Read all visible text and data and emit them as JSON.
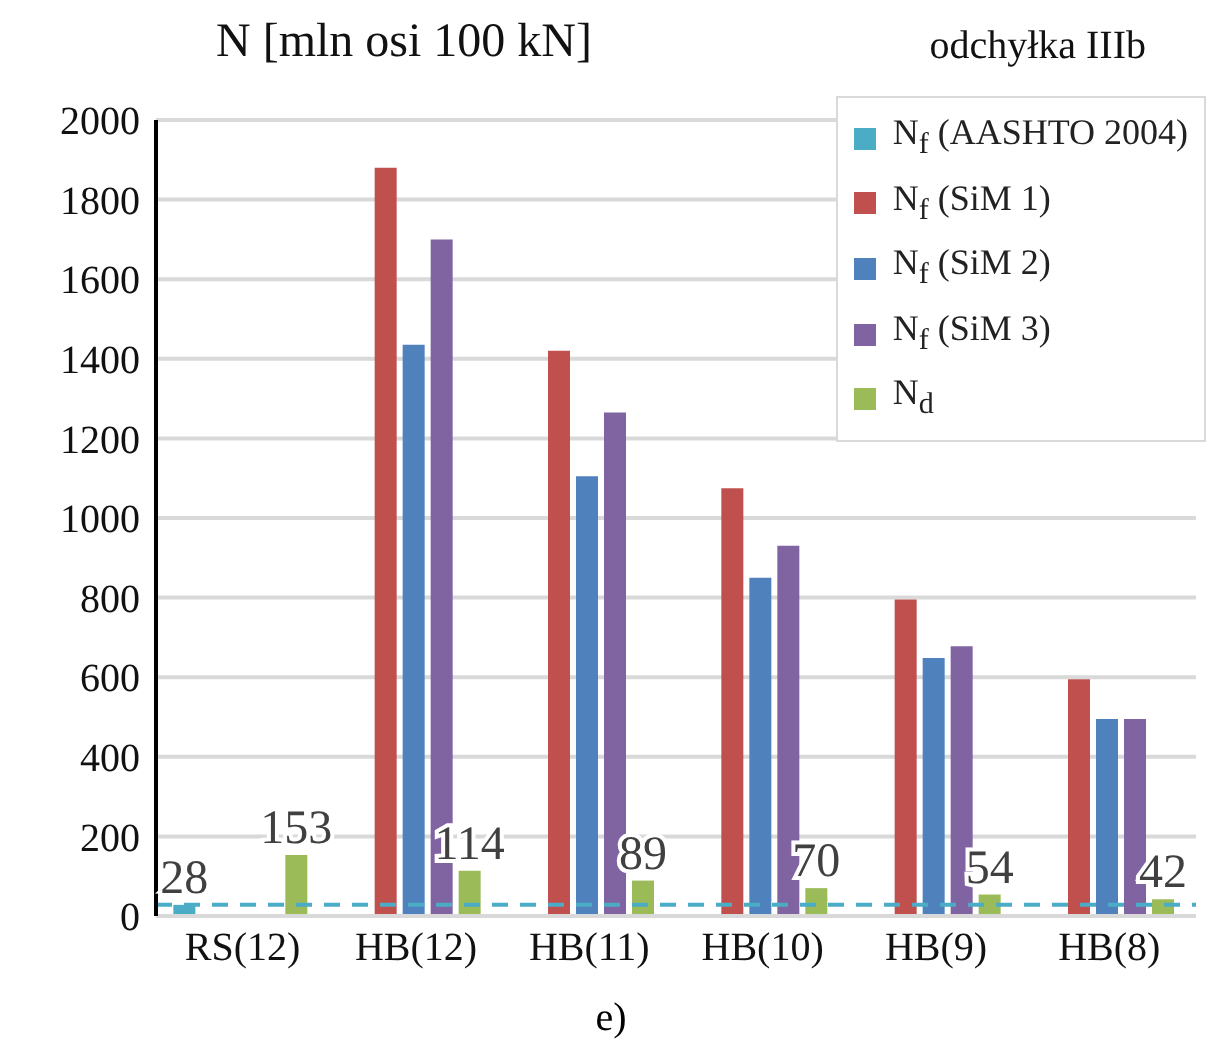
{
  "chart_data": {
    "type": "bar",
    "title": "odchyłka IIIb",
    "ylabel": "N [mln osi 100 kN]",
    "annotations": [
      "e)"
    ],
    "categories": [
      "RS(12)",
      "HB(12)",
      "HB(11)",
      "HB(10)",
      "HB(9)",
      "HB(8)"
    ],
    "series": [
      {
        "name": "N$_{f}$ (AASHTO 2004)",
        "color": "#4bacc6",
        "values": [
          28,
          null,
          null,
          null,
          null,
          null
        ],
        "value_labels": [
          "28",
          null,
          null,
          null,
          null,
          null
        ]
      },
      {
        "name": "N$_{f}$ (SiM 1)",
        "color": "#c0504d",
        "values": [
          null,
          1880,
          1420,
          1075,
          795,
          595
        ]
      },
      {
        "name": "N$_{f}$ (SiM 2)",
        "color": "#4f81bd",
        "values": [
          null,
          1435,
          1105,
          850,
          648,
          495
        ]
      },
      {
        "name": "N$_{f}$ (SiM 3)",
        "color": "#8064a2",
        "values": [
          null,
          1700,
          1265,
          930,
          678,
          495
        ]
      },
      {
        "name": "N$_{d}$",
        "color": "#9bbb59",
        "values": [
          153,
          114,
          89,
          70,
          54,
          42
        ],
        "value_labels": [
          "153",
          "114",
          "89",
          "70",
          "54",
          "42"
        ]
      }
    ],
    "ref_lines": [
      {
        "axis": "y",
        "value": 28,
        "color": "#4bacc6",
        "line_style": "dashed"
      }
    ],
    "ylim": [
      0,
      2000
    ],
    "yticks": [
      0,
      200,
      400,
      600,
      800,
      1000,
      1200,
      1400,
      1600,
      1800,
      2000
    ],
    "grid": "y",
    "legend": "top right"
  }
}
